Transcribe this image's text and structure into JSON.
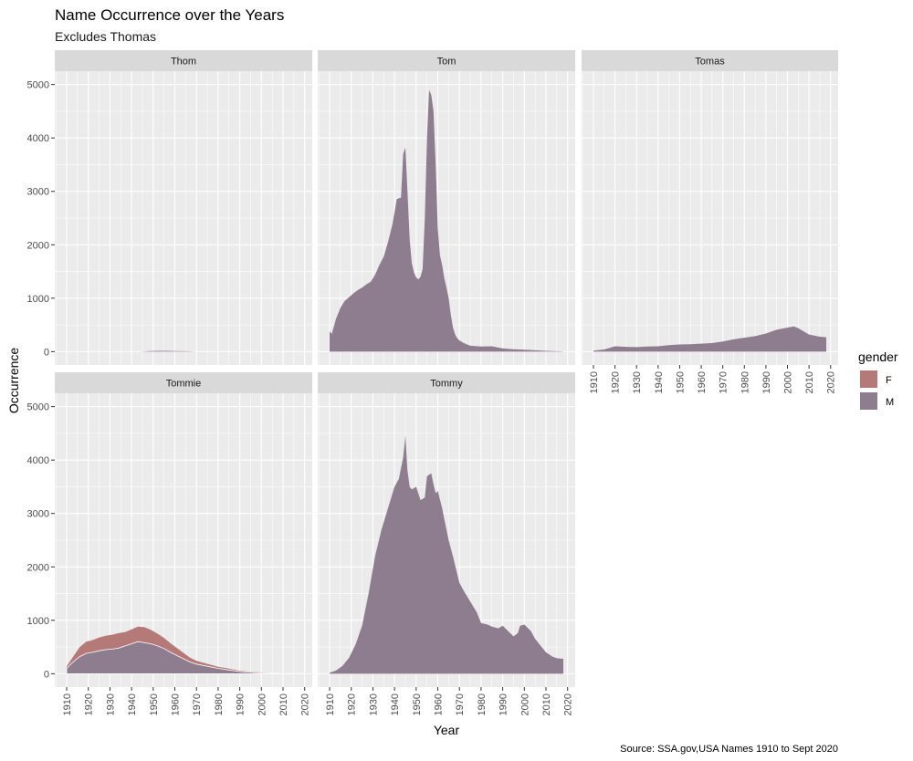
{
  "title": "Name Occurrence over the Years",
  "subtitle": "Excludes Thomas",
  "caption": "Source: SSA.gov,USA Names 1910 to Sept 2020",
  "colors": {
    "panel_bg": "#EBEBEB",
    "strip_bg": "#D9D9D9",
    "grid": "#FFFFFF",
    "F": "#B57A77",
    "M": "#8E7C8F",
    "text": "#4D4D4D",
    "title": "#000000"
  },
  "chart_data": {
    "type": "area",
    "stacked": true,
    "faceted_by": "name",
    "xlabel": "Year",
    "ylabel": "Occurrence",
    "xlim": [
      1910,
      2020
    ],
    "ylim": [
      0,
      5000
    ],
    "x_ticks": [
      "1910",
      "1920",
      "1930",
      "1940",
      "1950",
      "1960",
      "1970",
      "1980",
      "1990",
      "2000",
      "2010",
      "2020"
    ],
    "y_ticks": [
      "0",
      "1000",
      "2000",
      "3000",
      "4000",
      "5000"
    ],
    "legend": {
      "title": "gender",
      "position": "right",
      "entries": [
        {
          "key": "F",
          "label": "F",
          "color": "#B57A77"
        },
        {
          "key": "M",
          "label": "M",
          "color": "#8E7C8F"
        }
      ]
    },
    "grid": true,
    "panels": [
      {
        "name": "Thom",
        "series": [
          {
            "name": "F",
            "x": [],
            "y": []
          },
          {
            "name": "M",
            "x": [
              1910,
              1944,
              1948,
              1952,
              1956,
              1960,
              1965,
              1970
            ],
            "y": [
              0,
              0,
              12,
              14,
              15,
              12,
              8,
              0
            ]
          }
        ]
      },
      {
        "name": "Tom",
        "series": [
          {
            "name": "F",
            "x": [],
            "y": []
          },
          {
            "name": "M",
            "x": [
              1910,
              1911,
              1913,
              1915,
              1917,
              1919,
              1921,
              1923,
              1925,
              1927,
              1929,
              1931,
              1933,
              1935,
              1937,
              1939,
              1940,
              1941,
              1942,
              1943,
              1944,
              1945,
              1946,
              1947,
              1948,
              1949,
              1950,
              1951,
              1952,
              1953,
              1954,
              1955,
              1956,
              1957,
              1958,
              1959,
              1960,
              1961,
              1962,
              1963,
              1964,
              1965,
              1966,
              1967,
              1968,
              1969,
              1970,
              1972,
              1975,
              1980,
              1985,
              1990,
              1995,
              2000,
              2005,
              2010,
              2015,
              2018
            ],
            "y": [
              380,
              330,
              620,
              820,
              950,
              1020,
              1090,
              1150,
              1200,
              1260,
              1310,
              1440,
              1620,
              1780,
              2050,
              2380,
              2600,
              2850,
              2870,
              2880,
              3700,
              3820,
              3000,
              2100,
              1650,
              1480,
              1390,
              1350,
              1400,
              1550,
              2500,
              4000,
              4900,
              4800,
              4500,
              3500,
              2300,
              1800,
              1620,
              1380,
              1200,
              1000,
              700,
              450,
              320,
              250,
              210,
              160,
              110,
              95,
              100,
              60,
              45,
              35,
              25,
              15,
              8,
              5
            ]
          }
        ]
      },
      {
        "name": "Tomas",
        "series": [
          {
            "name": "F",
            "x": [],
            "y": []
          },
          {
            "name": "M",
            "x": [
              1910,
              1915,
              1920,
              1925,
              1930,
              1935,
              1940,
              1945,
              1950,
              1955,
              1960,
              1965,
              1970,
              1975,
              1980,
              1985,
              1990,
              1995,
              2000,
              2003,
              2005,
              2010,
              2015,
              2018
            ],
            "y": [
              20,
              40,
              100,
              90,
              85,
              95,
              100,
              120,
              135,
              140,
              150,
              160,
              190,
              230,
              260,
              290,
              340,
              410,
              450,
              470,
              440,
              320,
              280,
              270
            ]
          }
        ]
      },
      {
        "name": "Tommie",
        "series": [
          {
            "name": "F",
            "x": [
              1910,
              1913,
              1916,
              1919,
              1922,
              1925,
              1928,
              1931,
              1934,
              1937,
              1940,
              1943,
              1946,
              1949,
              1952,
              1955,
              1958,
              1961,
              1964,
              1967,
              1970,
              1975,
              1980,
              1985,
              1990,
              1995,
              2000,
              2005,
              2010,
              2015,
              2018
            ],
            "y": [
              40,
              100,
              180,
              220,
              230,
              250,
              260,
              270,
              280,
              260,
              270,
              280,
              290,
              260,
              230,
              200,
              170,
              140,
              110,
              80,
              60,
              45,
              30,
              25,
              15,
              10,
              8,
              5,
              3,
              2,
              1
            ]
          },
          {
            "name": "M",
            "x": [
              1910,
              1913,
              1916,
              1919,
              1922,
              1925,
              1928,
              1931,
              1934,
              1937,
              1940,
              1943,
              1946,
              1949,
              1952,
              1955,
              1958,
              1961,
              1964,
              1967,
              1970,
              1975,
              1980,
              1985,
              1990,
              1995,
              2000,
              2005,
              2010,
              2015,
              2018
            ],
            "y": [
              100,
              220,
              320,
              380,
              400,
              430,
              450,
              460,
              480,
              520,
              560,
              600,
              580,
              560,
              520,
              470,
              400,
              340,
              280,
              220,
              180,
              140,
              100,
              70,
              40,
              25,
              15,
              10,
              6,
              4,
              3
            ]
          }
        ]
      },
      {
        "name": "Tommy",
        "series": [
          {
            "name": "F",
            "x": [],
            "y": []
          },
          {
            "name": "M",
            "x": [
              1910,
              1913,
              1916,
              1919,
              1922,
              1925,
              1928,
              1931,
              1934,
              1937,
              1940,
              1942,
              1944,
              1945,
              1946,
              1947,
              1948,
              1950,
              1952,
              1954,
              1955,
              1957,
              1958,
              1959,
              1960,
              1962,
              1963,
              1965,
              1967,
              1970,
              1972,
              1975,
              1978,
              1980,
              1983,
              1985,
              1988,
              1990,
              1993,
              1995,
              1997,
              1998,
              2000,
              2003,
              2005,
              2008,
              2010,
              2013,
              2015,
              2018
            ],
            "y": [
              20,
              60,
              150,
              300,
              550,
              900,
              1500,
              2200,
              2700,
              3100,
              3500,
              3650,
              4050,
              4450,
              3800,
              3500,
              3450,
              3500,
              3250,
              3300,
              3700,
              3750,
              3550,
              3380,
              3420,
              3100,
              2900,
              2500,
              2200,
              1700,
              1550,
              1350,
              1150,
              950,
              920,
              880,
              850,
              900,
              780,
              700,
              760,
              900,
              920,
              800,
              650,
              500,
              400,
              320,
              290,
              280
            ]
          }
        ]
      }
    ]
  }
}
